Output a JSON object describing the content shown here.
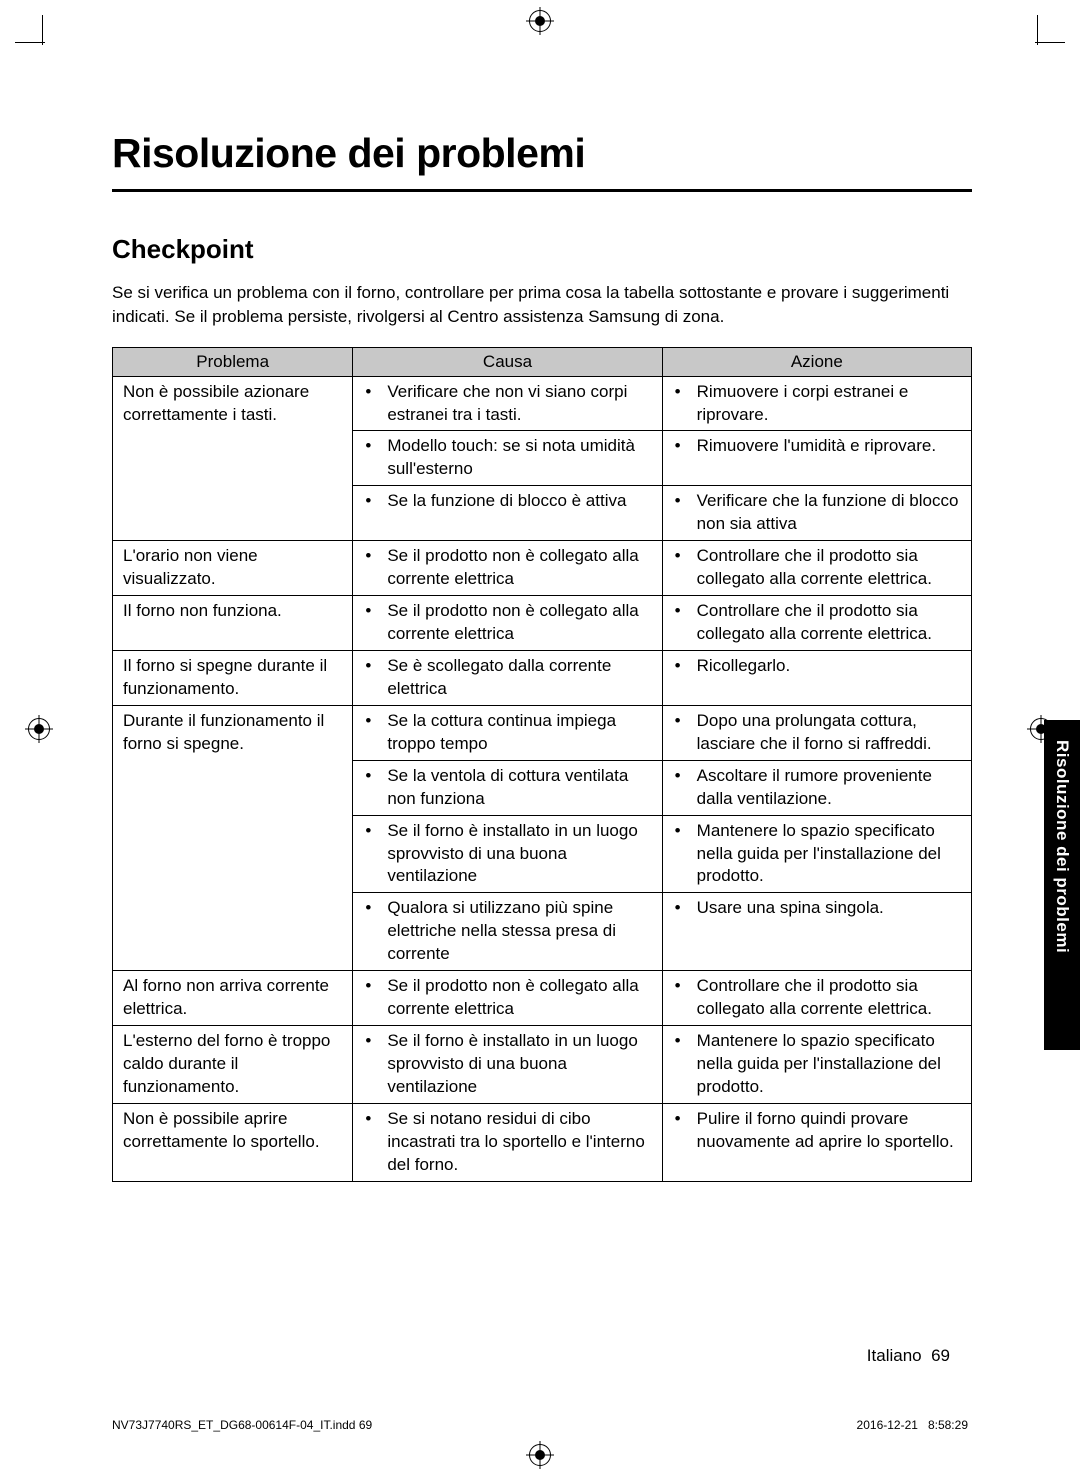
{
  "title": "Risoluzione dei problemi",
  "section_heading": "Checkpoint",
  "intro": "Se si verifica un problema con il forno, controllare per prima cosa la tabella sottostante e provare i suggerimenti indicati. Se il problema persiste, rivolgersi al Centro assistenza Samsung di zona.",
  "table": {
    "headers": {
      "problema": "Problema",
      "causa": "Causa",
      "azione": "Azione"
    },
    "rows": [
      {
        "problema": "Non è possibile azionare correttamente i tasti.",
        "items": [
          {
            "causa": "Verificare che non vi siano corpi estranei tra i tasti.",
            "azione": "Rimuovere i corpi estranei e riprovare."
          },
          {
            "causa": "Modello touch: se si nota umidità sull'esterno",
            "azione": "Rimuovere l'umidità e riprovare."
          },
          {
            "causa": "Se la funzione di blocco è attiva",
            "azione": "Verificare che la funzione di blocco non sia attiva"
          }
        ]
      },
      {
        "problema": "L'orario non viene visualizzato.",
        "items": [
          {
            "causa": "Se il prodotto non è collegato alla corrente elettrica",
            "azione": "Controllare che il prodotto sia collegato alla corrente elettrica."
          }
        ]
      },
      {
        "problema": "Il forno non funziona.",
        "items": [
          {
            "causa": "Se il prodotto non è collegato alla corrente elettrica",
            "azione": "Controllare che il prodotto sia collegato alla corrente elettrica."
          }
        ]
      },
      {
        "problema": "Il forno si spegne durante il funzionamento.",
        "items": [
          {
            "causa": "Se è scollegato dalla corrente elettrica",
            "azione": "Ricollegarlo."
          }
        ]
      },
      {
        "problema": "Durante il funzionamento il forno si spegne.",
        "items": [
          {
            "causa": "Se la cottura continua impiega troppo tempo",
            "azione": "Dopo una prolungata cottura, lasciare che il forno si raffreddi."
          },
          {
            "causa": "Se la ventola di cottura ventilata non funziona",
            "azione": "Ascoltare il rumore proveniente dalla ventilazione."
          },
          {
            "causa": "Se il forno è installato in un luogo sprovvisto di una buona ventilazione",
            "azione": "Mantenere lo spazio specificato nella guida per l'installazione del prodotto."
          },
          {
            "causa": "Qualora si utilizzano più spine elettriche nella stessa presa di corrente",
            "azione": "Usare una spina singola."
          }
        ]
      },
      {
        "problema": "Al forno non arriva corrente elettrica.",
        "items": [
          {
            "causa": "Se il prodotto non è collegato alla corrente elettrica",
            "azione": "Controllare che il prodotto sia collegato alla corrente elettrica."
          }
        ]
      },
      {
        "problema": "L'esterno del forno è troppo caldo durante il funzionamento.",
        "items": [
          {
            "causa": "Se il forno è installato in un luogo sprovvisto di una buona ventilazione",
            "azione": "Mantenere lo spazio specificato nella guida per l'installazione del prodotto."
          }
        ]
      },
      {
        "problema": "Non è possibile aprire correttamente lo sportello.",
        "items": [
          {
            "causa": "Se si notano residui di cibo incastrati tra lo sportello e l'interno del forno.",
            "azione": "Pulire il forno quindi provare nuovamente ad aprire lo sportello."
          }
        ]
      }
    ]
  },
  "side_tab": "Risoluzione dei problemi",
  "footer_lang": "Italiano",
  "footer_page": "69",
  "footer_file": "NV73J7740RS_ET_DG68-00614F-04_IT.indd   69",
  "footer_date": "2016-12-21",
  "footer_time": "8:58:29",
  "colors": {
    "header_bg": "#c8c8c8",
    "border": "#000000",
    "tab_bg": "#000000",
    "tab_text": "#ffffff",
    "text": "#000000"
  }
}
